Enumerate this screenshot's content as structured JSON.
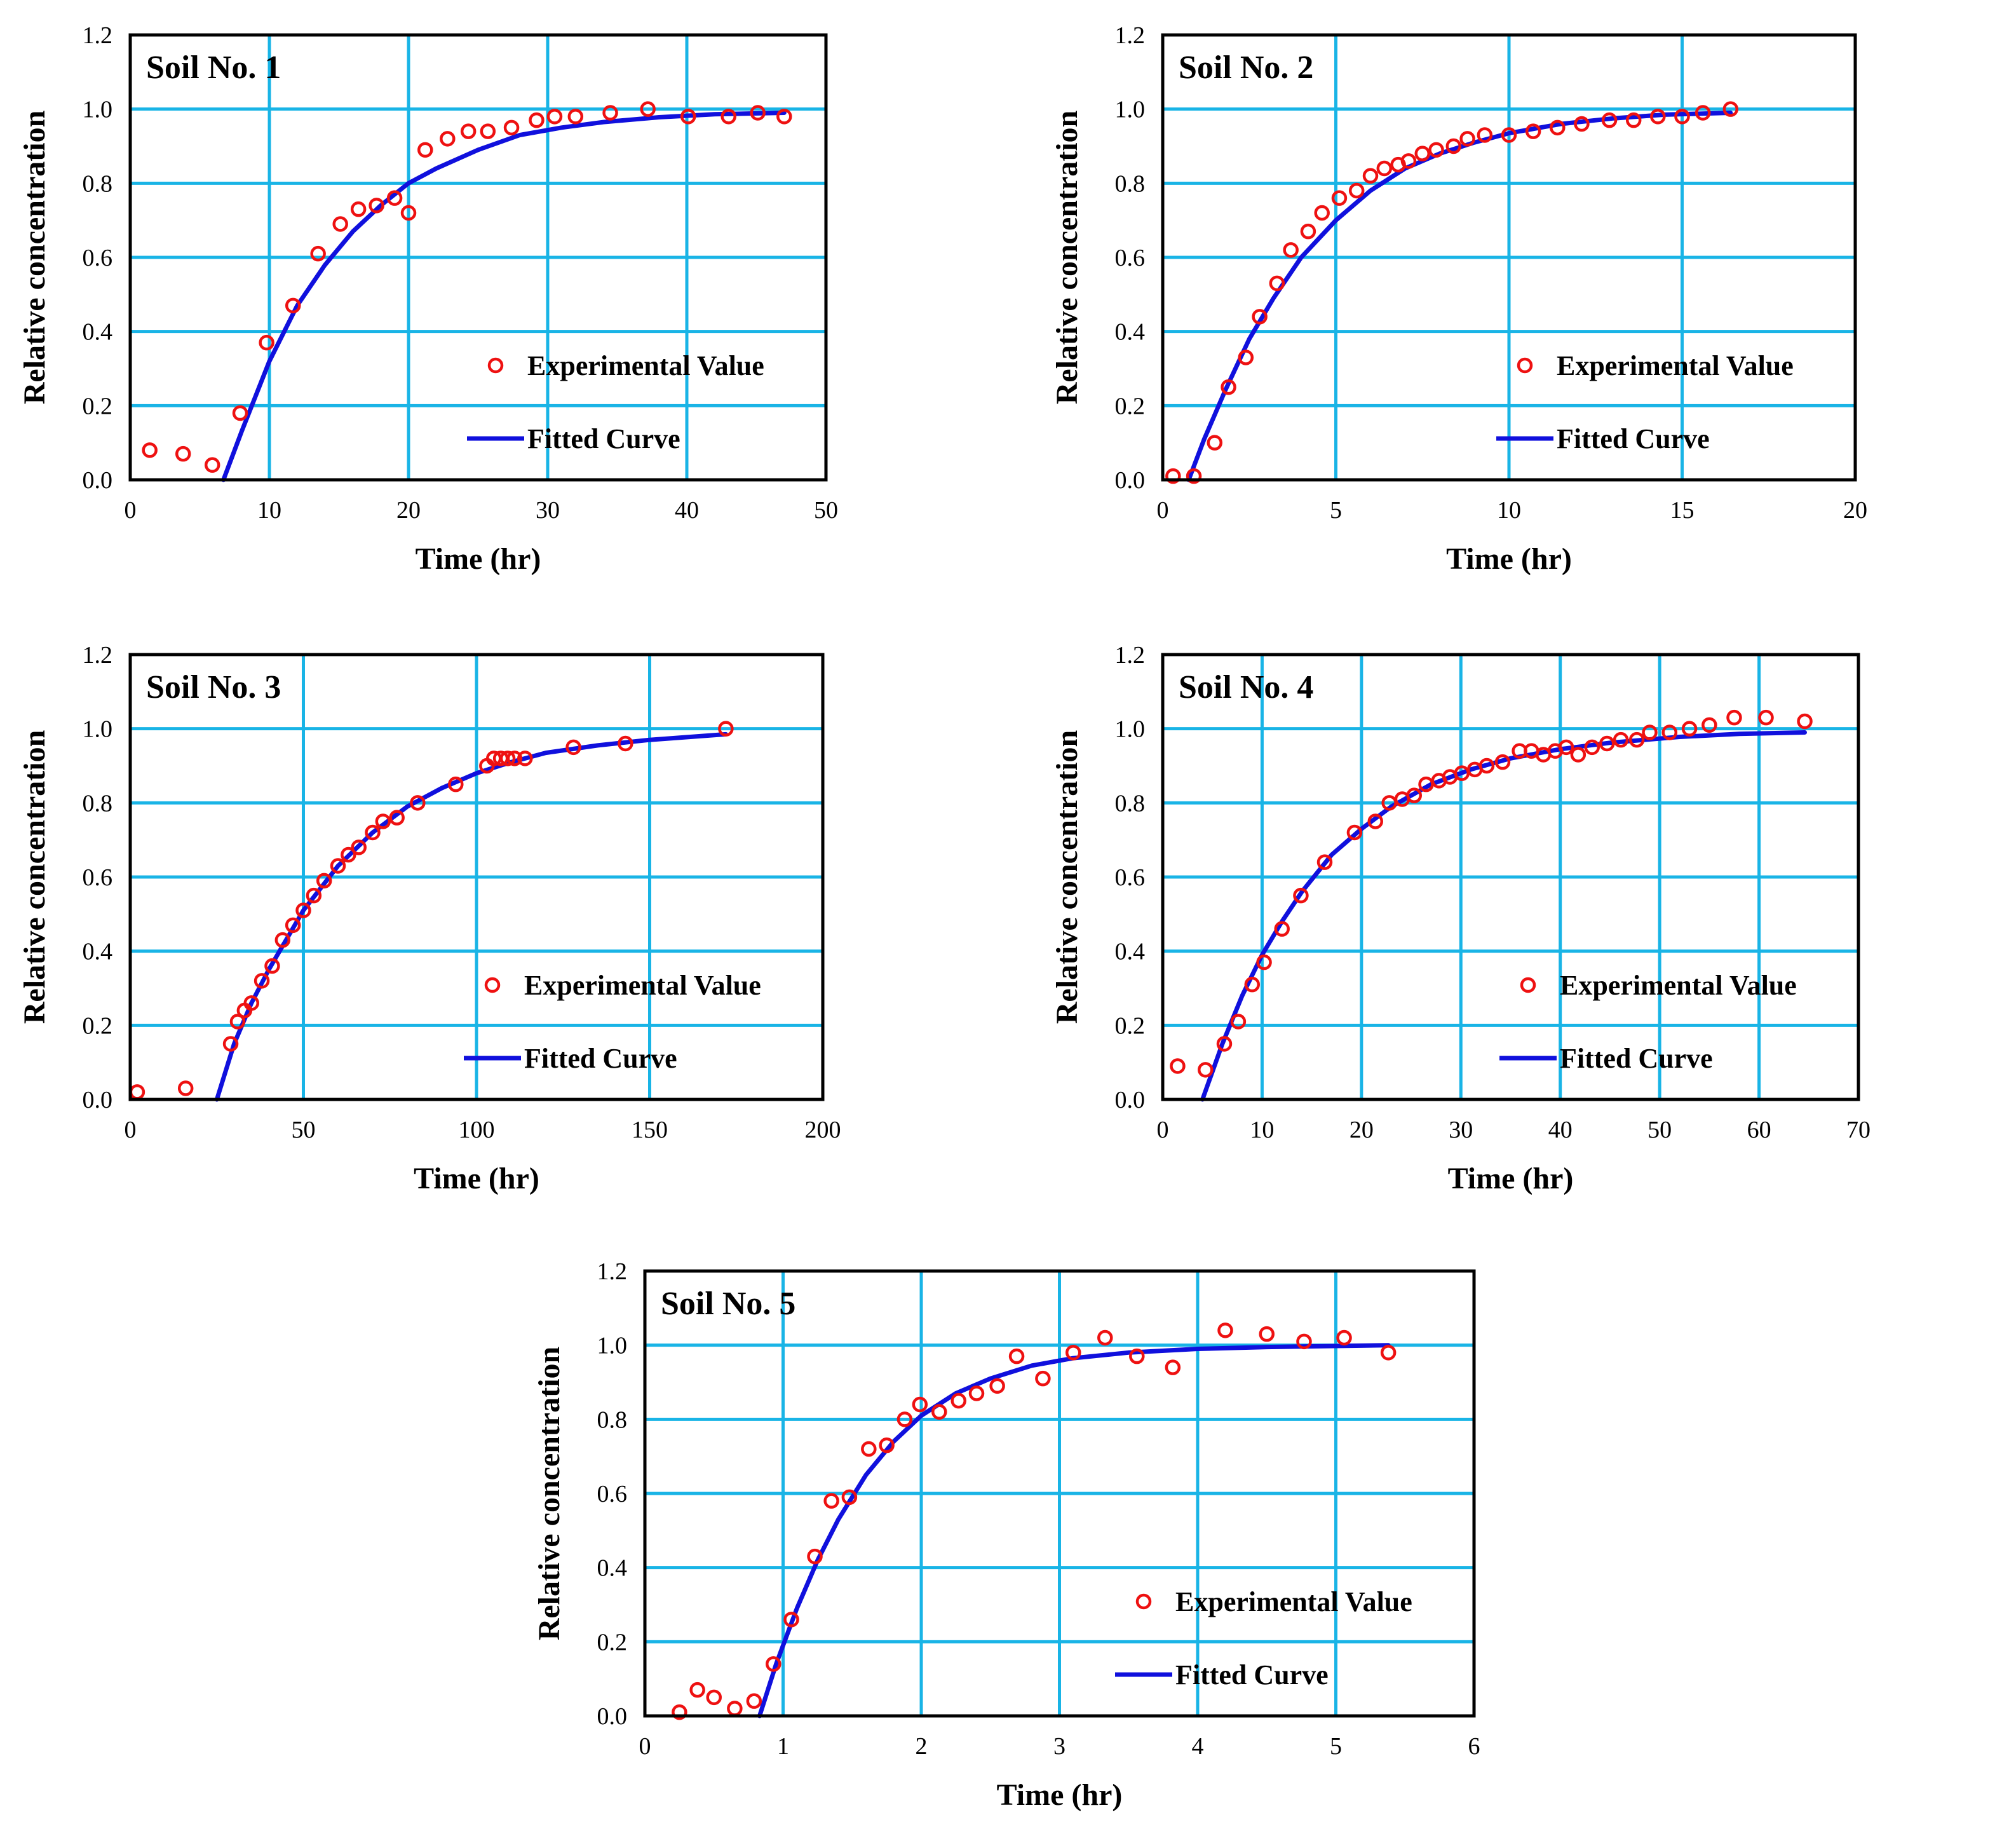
{
  "chart_data": [
    {
      "type": "scatter",
      "title": "Soil No. 1",
      "xlabel": "Time (hr)",
      "ylabel": "Relative concentration",
      "xlim": [
        0,
        50
      ],
      "ylim": [
        0,
        1.2
      ],
      "xticks": [
        0,
        10,
        20,
        30,
        40,
        50
      ],
      "yticks": [
        0.0,
        0.2,
        0.4,
        0.6,
        0.8,
        1.0,
        1.2
      ],
      "grid": true,
      "legend_position": "lower-right",
      "series": [
        {
          "name": "Experimental Value",
          "marker": "circle",
          "x": [
            1.4,
            3.8,
            5.9,
            7.9,
            9.8,
            11.7,
            13.5,
            15.1,
            16.4,
            17.7,
            19.0,
            20.0,
            21.2,
            22.8,
            24.3,
            25.7,
            27.4,
            29.2,
            30.5,
            32.0,
            34.5,
            37.2,
            40.1,
            43.0,
            45.1,
            47.0
          ],
          "y": [
            0.08,
            0.07,
            0.04,
            0.18,
            0.37,
            0.47,
            0.61,
            0.69,
            0.73,
            0.74,
            0.76,
            0.72,
            0.89,
            0.92,
            0.94,
            0.94,
            0.95,
            0.97,
            0.98,
            0.98,
            0.99,
            1.0,
            0.98,
            0.98,
            0.99,
            0.98
          ]
        },
        {
          "name": "Fitted Curve",
          "line": "solid",
          "x": [
            6.7,
            8.0,
            10.0,
            12.0,
            14.0,
            16.0,
            18.0,
            20.0,
            22.0,
            25.0,
            28.0,
            31.0,
            34.0,
            38.0,
            42.0,
            47.0
          ],
          "y": [
            0.0,
            0.13,
            0.32,
            0.47,
            0.58,
            0.67,
            0.74,
            0.8,
            0.84,
            0.89,
            0.93,
            0.95,
            0.965,
            0.978,
            0.986,
            0.99
          ]
        }
      ]
    },
    {
      "type": "scatter",
      "title": "Soil No. 2",
      "xlabel": "Time (hr)",
      "ylabel": "Relative concentration",
      "xlim": [
        0,
        20
      ],
      "ylim": [
        0,
        1.2
      ],
      "xticks": [
        0,
        5,
        10,
        15,
        20
      ],
      "yticks": [
        0.0,
        0.2,
        0.4,
        0.6,
        0.8,
        1.0,
        1.2
      ],
      "grid": true,
      "legend_position": "lower-right",
      "series": [
        {
          "name": "Experimental Value",
          "marker": "circle",
          "x": [
            0.3,
            0.9,
            1.5,
            1.9,
            2.4,
            2.8,
            3.3,
            3.7,
            4.2,
            4.6,
            5.1,
            5.6,
            6.0,
            6.4,
            6.8,
            7.1,
            7.5,
            7.9,
            8.4,
            8.8,
            9.3,
            10.0,
            10.7,
            11.4,
            12.1,
            12.9,
            13.6,
            14.3,
            15.0,
            15.6,
            16.4
          ],
          "y": [
            0.01,
            0.01,
            0.1,
            0.25,
            0.33,
            0.44,
            0.53,
            0.62,
            0.67,
            0.72,
            0.76,
            0.78,
            0.82,
            0.84,
            0.85,
            0.86,
            0.88,
            0.89,
            0.9,
            0.92,
            0.93,
            0.93,
            0.94,
            0.95,
            0.96,
            0.97,
            0.97,
            0.98,
            0.98,
            0.99,
            1.0
          ]
        },
        {
          "name": "Fitted Curve",
          "line": "solid",
          "x": [
            0.75,
            1.2,
            1.8,
            2.5,
            3.2,
            4.0,
            5.0,
            6.0,
            7.0,
            8.0,
            9.0,
            10.0,
            11.5,
            13.0,
            14.5,
            16.4
          ],
          "y": [
            0.0,
            0.11,
            0.24,
            0.38,
            0.49,
            0.6,
            0.7,
            0.78,
            0.84,
            0.88,
            0.91,
            0.935,
            0.96,
            0.975,
            0.985,
            0.99
          ]
        }
      ]
    },
    {
      "type": "scatter",
      "title": "Soil No. 3",
      "xlabel": "Time (hr)",
      "ylabel": "Relative concentration",
      "xlim": [
        0,
        200
      ],
      "ylim": [
        0,
        1.2
      ],
      "xticks": [
        0,
        50,
        100,
        150,
        200
      ],
      "yticks": [
        0.0,
        0.2,
        0.4,
        0.6,
        0.8,
        1.0,
        1.2
      ],
      "grid": true,
      "legend_position": "lower-right",
      "series": [
        {
          "name": "Experimental Value",
          "marker": "circle",
          "x": [
            2,
            16,
            29,
            31,
            33,
            35,
            38,
            41,
            44,
            47,
            50,
            53,
            56,
            60,
            63,
            66,
            70,
            73,
            77,
            83,
            94,
            103,
            105,
            107,
            109,
            111,
            114,
            128,
            143,
            172
          ],
          "y": [
            0.02,
            0.03,
            0.15,
            0.21,
            0.24,
            0.26,
            0.32,
            0.36,
            0.43,
            0.47,
            0.51,
            0.55,
            0.59,
            0.63,
            0.66,
            0.68,
            0.72,
            0.75,
            0.76,
            0.8,
            0.85,
            0.9,
            0.92,
            0.92,
            0.92,
            0.92,
            0.92,
            0.95,
            0.96,
            1.0
          ]
        },
        {
          "name": "Fitted Curve",
          "line": "solid",
          "x": [
            25,
            30,
            35,
            40,
            50,
            60,
            70,
            80,
            90,
            100,
            110,
            120,
            135,
            150,
            172
          ],
          "y": [
            0.0,
            0.15,
            0.26,
            0.35,
            0.51,
            0.63,
            0.72,
            0.79,
            0.84,
            0.88,
            0.91,
            0.935,
            0.955,
            0.97,
            0.985
          ]
        }
      ]
    },
    {
      "type": "scatter",
      "title": "Soil No. 4",
      "xlabel": "Time (hr)",
      "ylabel": "Relative concentration",
      "xlim": [
        0,
        70
      ],
      "ylim": [
        0,
        1.2
      ],
      "xticks": [
        0,
        10,
        20,
        30,
        40,
        50,
        60,
        70
      ],
      "yticks": [
        0.0,
        0.2,
        0.4,
        0.6,
        0.8,
        1.0,
        1.2
      ],
      "grid": true,
      "legend_position": "lower-right",
      "series": [
        {
          "name": "Experimental Value",
          "marker": "circle",
          "x": [
            1.5,
            4.3,
            6.2,
            7.6,
            9.0,
            10.2,
            12.0,
            13.9,
            16.3,
            19.3,
            21.4,
            22.8,
            24.1,
            25.3,
            26.5,
            27.8,
            28.9,
            30.1,
            31.4,
            32.6,
            34.2,
            35.9,
            37.1,
            38.3,
            39.5,
            40.6,
            41.8,
            43.2,
            44.7,
            46.1,
            47.7,
            49.0,
            51.0,
            53.0,
            55.0,
            57.5,
            60.7,
            64.6
          ],
          "y": [
            0.09,
            0.08,
            0.15,
            0.21,
            0.31,
            0.37,
            0.46,
            0.55,
            0.64,
            0.72,
            0.75,
            0.8,
            0.81,
            0.82,
            0.85,
            0.86,
            0.87,
            0.88,
            0.89,
            0.9,
            0.91,
            0.94,
            0.94,
            0.93,
            0.94,
            0.95,
            0.93,
            0.95,
            0.96,
            0.97,
            0.97,
            0.99,
            0.99,
            1.0,
            1.01,
            1.03,
            1.03,
            1.02
          ]
        },
        {
          "name": "Fitted Curve",
          "line": "solid",
          "x": [
            4.0,
            6.0,
            8.0,
            10.0,
            12.0,
            14.0,
            17.0,
            20.0,
            23.0,
            27.0,
            31.0,
            35.0,
            40.0,
            45.0,
            52.0,
            58.0,
            64.6
          ],
          "y": [
            0.0,
            0.15,
            0.28,
            0.39,
            0.48,
            0.56,
            0.66,
            0.73,
            0.79,
            0.85,
            0.89,
            0.92,
            0.945,
            0.962,
            0.978,
            0.986,
            0.99
          ]
        }
      ]
    },
    {
      "type": "scatter",
      "title": "Soil No. 5",
      "xlabel": "Time (hr)",
      "ylabel": "Relative concentration",
      "xlim": [
        0,
        6
      ],
      "ylim": [
        0,
        1.2
      ],
      "xticks": [
        0,
        1,
        2,
        3,
        4,
        5,
        6
      ],
      "yticks": [
        0.0,
        0.2,
        0.4,
        0.6,
        0.8,
        1.0,
        1.2
      ],
      "grid": true,
      "legend_position": "lower-right",
      "series": [
        {
          "name": "Experimental Value",
          "marker": "circle",
          "x": [
            0.25,
            0.38,
            0.5,
            0.65,
            0.79,
            0.93,
            1.06,
            1.23,
            1.35,
            1.48,
            1.62,
            1.75,
            1.88,
            1.99,
            2.13,
            2.27,
            2.4,
            2.55,
            2.69,
            2.88,
            3.1,
            3.33,
            3.56,
            3.82,
            4.2,
            4.5,
            4.77,
            5.06,
            5.38
          ],
          "y": [
            0.01,
            0.07,
            0.05,
            0.02,
            0.04,
            0.14,
            0.26,
            0.43,
            0.58,
            0.59,
            0.72,
            0.73,
            0.8,
            0.84,
            0.82,
            0.85,
            0.87,
            0.89,
            0.97,
            0.91,
            0.98,
            1.02,
            0.97,
            0.94,
            1.04,
            1.03,
            1.01,
            1.02,
            0.98
          ]
        },
        {
          "name": "Fitted Curve",
          "line": "solid",
          "x": [
            0.83,
            0.95,
            1.1,
            1.25,
            1.4,
            1.6,
            1.8,
            2.0,
            2.25,
            2.5,
            2.8,
            3.1,
            3.5,
            4.0,
            4.5,
            5.38
          ],
          "y": [
            0.0,
            0.14,
            0.29,
            0.42,
            0.53,
            0.65,
            0.74,
            0.81,
            0.87,
            0.91,
            0.945,
            0.965,
            0.98,
            0.99,
            0.995,
            1.0
          ]
        }
      ]
    }
  ]
}
